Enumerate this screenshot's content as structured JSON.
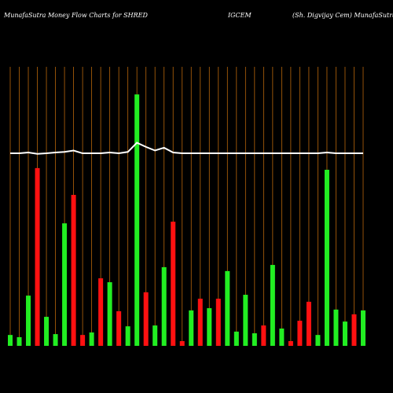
{
  "chart_data": {
    "type": "bar",
    "title": "MunafaSutra  Money Flow  Charts for SHRED",
    "ticker": "IGCEM",
    "company": "(Sh. Digvijay Cem) MunafaSutra.com",
    "categories": [
      null,
      null,
      null,
      null,
      null,
      null,
      null,
      null,
      null,
      null,
      null,
      null,
      null,
      null,
      null,
      null,
      null,
      null,
      null,
      null,
      null,
      null,
      null,
      null,
      null,
      null,
      null,
      null,
      null,
      null,
      null,
      null,
      null,
      null,
      null,
      null,
      null,
      null,
      null,
      null
    ],
    "values": [
      3.9,
      3.1,
      18.0,
      63.7,
      10.4,
      4.2,
      43.9,
      54.1,
      3.9,
      4.8,
      24.2,
      22.8,
      12.4,
      7.0,
      90.1,
      19.2,
      7.3,
      28.2,
      44.5,
      1.7,
      12.7,
      16.9,
      13.5,
      16.9,
      26.8,
      5.1,
      18.3,
      4.5,
      7.3,
      29.0,
      6.2,
      1.7,
      9.0,
      15.8,
      3.9,
      63.1,
      13.0,
      8.7,
      11.3,
      12.7
    ],
    "colors": [
      "#22ee22",
      "#22ee22",
      "#22ee22",
      "#ff1111",
      "#22ee22",
      "#22ee22",
      "#22ee22",
      "#ff1111",
      "#ff1111",
      "#22ee22",
      "#ff1111",
      "#22ee22",
      "#ff1111",
      "#22ee22",
      "#22ee22",
      "#ff1111",
      "#22ee22",
      "#22ee22",
      "#ff1111",
      "#ff1111",
      "#22ee22",
      "#ff1111",
      "#22ee22",
      "#ff1111",
      "#22ee22",
      "#22ee22",
      "#22ee22",
      "#22ee22",
      "#ff1111",
      "#22ee22",
      "#22ee22",
      "#ff1111",
      "#ff1111",
      "#ff1111",
      "#22ee22",
      "#22ee22",
      "#22ee22",
      "#22ee22",
      "#ff1111",
      "#22ee22"
    ],
    "line": {
      "color": "#ffffff",
      "values": [
        69,
        69,
        69.3,
        68.8,
        69,
        69.3,
        69.5,
        70,
        69,
        69,
        69,
        69.3,
        69,
        69.5,
        72.8,
        71.3,
        70,
        71,
        69.3,
        69,
        69,
        69,
        69,
        69,
        69,
        69,
        69,
        69,
        69,
        69,
        69,
        69,
        69,
        69,
        69,
        69.3,
        69,
        69,
        69,
        69
      ]
    },
    "ylim": [
      0,
      100
    ],
    "grid_color": "#b8660b"
  }
}
